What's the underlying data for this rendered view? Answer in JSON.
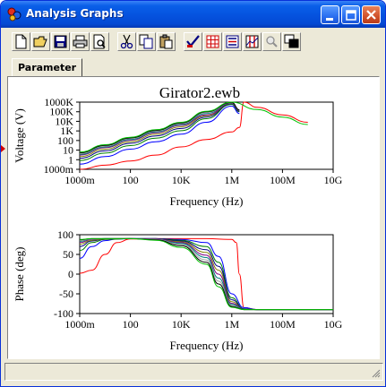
{
  "window": {
    "title": "Analysis Graphs"
  },
  "titlebar_buttons": [
    {
      "name": "minimize-button",
      "icon": "minimize-icon"
    },
    {
      "name": "maximize-button",
      "icon": "maximize-icon"
    },
    {
      "name": "close-button",
      "icon": "close-icon"
    }
  ],
  "toolbar": {
    "tools": [
      {
        "name": "new-button",
        "icon": "new-document-icon"
      },
      {
        "name": "open-button",
        "icon": "open-folder-icon"
      },
      {
        "name": "save-button",
        "icon": "save-disk-icon"
      },
      {
        "name": "print-button",
        "icon": "printer-icon"
      },
      {
        "name": "print-preview-button",
        "icon": "print-preview-icon"
      },
      {
        "name": "cut-button",
        "icon": "scissors-icon"
      },
      {
        "name": "copy-button",
        "icon": "copy-icon"
      },
      {
        "name": "paste-button",
        "icon": "paste-icon"
      },
      {
        "name": "properties-button",
        "icon": "properties-icon"
      },
      {
        "name": "toggle-grid-button",
        "icon": "grid-icon"
      },
      {
        "name": "toggle-legend-button",
        "icon": "legend-icon"
      },
      {
        "name": "toggle-cursors-button",
        "icon": "cursors-icon"
      },
      {
        "name": "zoom-button",
        "icon": "zoom-icon"
      },
      {
        "name": "restore-graph-button",
        "icon": "restore-icon"
      }
    ]
  },
  "tabs": [
    {
      "label": "Parameter",
      "active": true
    }
  ],
  "colors": {
    "title_bar": "#0554e0",
    "series": [
      "#ff0000",
      "#0000ff",
      "#008000",
      "#000080",
      "#808000",
      "#800080",
      "#008080",
      "#a0a0a0",
      "#000000",
      "#00c000"
    ]
  },
  "graph_title": "Girator2.ewb",
  "chart_data": [
    {
      "type": "line",
      "title": "Girator2.ewb",
      "xlabel": "Frequency (Hz)",
      "ylabel": "Voltage (V)",
      "x_scale": "log",
      "y_scale": "log",
      "xlim": [
        1,
        10000000000
      ],
      "ylim": [
        0.001,
        1000000
      ],
      "x_ticks": [
        "1000m",
        "100",
        "10K",
        "1M",
        "100M",
        "10G"
      ],
      "y_ticks": [
        "1000K",
        "100K",
        "10K",
        "1K",
        "100",
        "10",
        "1",
        "1000m"
      ],
      "grid": false,
      "series": [
        {
          "color": "#ff0000",
          "x": [
            1,
            10,
            100,
            1000,
            10000,
            100000,
            1000000,
            2000000,
            3000000,
            10000000,
            100000000,
            1000000000
          ],
          "y": [
            0.001,
            0.0036,
            0.013,
            0.08,
            1,
            10,
            100,
            400,
            1000000,
            200000,
            20000,
            2000
          ]
        },
        {
          "color": "#0000ff",
          "x": [
            1,
            10,
            100,
            1000,
            10000,
            100000,
            1000000,
            2000000
          ],
          "y": [
            0.005,
            0.05,
            0.5,
            5,
            50,
            2000,
            300000,
            30000
          ]
        },
        {
          "color": "#008000",
          "x": [
            1,
            10,
            100,
            1000,
            10000,
            100000,
            1000000,
            2000000
          ],
          "y": [
            0.015,
            0.15,
            1.5,
            15,
            150,
            6000,
            500000,
            50000
          ]
        },
        {
          "color": "#000080",
          "x": [
            1,
            10,
            100,
            1000,
            10000,
            100000,
            1000000,
            2000000
          ],
          "y": [
            0.03,
            0.3,
            3,
            30,
            300,
            10000,
            600000,
            60000
          ]
        },
        {
          "color": "#808000",
          "x": [
            1,
            10,
            100,
            1000,
            10000,
            100000,
            1000000,
            2000000
          ],
          "y": [
            0.05,
            0.5,
            5,
            50,
            500,
            15000,
            700000,
            70000
          ]
        },
        {
          "color": "#800080",
          "x": [
            1,
            10,
            100,
            1000,
            10000,
            100000,
            1000000,
            2000000
          ],
          "y": [
            0.08,
            0.8,
            8,
            80,
            800,
            20000,
            750000,
            75000
          ]
        },
        {
          "color": "#008080",
          "x": [
            1,
            10,
            100,
            1000,
            10000,
            100000,
            1000000,
            2000000
          ],
          "y": [
            0.1,
            1,
            10,
            100,
            1000,
            30000,
            800000,
            80000
          ]
        },
        {
          "color": "#a0a0a0",
          "x": [
            1,
            10,
            100,
            1000,
            10000,
            100000,
            1000000,
            2000000
          ],
          "y": [
            0.13,
            1.3,
            13,
            130,
            1300,
            40000,
            850000,
            85000
          ]
        },
        {
          "color": "#000000",
          "x": [
            1,
            10,
            100,
            1000,
            10000,
            100000,
            1000000,
            2000000
          ],
          "y": [
            0.16,
            1.6,
            16,
            160,
            1600,
            50000,
            900000,
            90000
          ]
        },
        {
          "color": "#00c000",
          "x": [
            1,
            10,
            100,
            1000,
            10000,
            100000,
            1000000,
            10000000,
            100000000,
            1000000000
          ],
          "y": [
            0.2,
            2,
            20,
            200,
            2000,
            60000,
            1000000,
            100000,
            10000,
            1000
          ]
        }
      ]
    },
    {
      "type": "line",
      "xlabel": "Frequency (Hz)",
      "ylabel": "Phase (deg)",
      "x_scale": "log",
      "xlim": [
        1,
        10000000000
      ],
      "ylim": [
        -100,
        100
      ],
      "x_ticks": [
        "1000m",
        "100",
        "10K",
        "1M",
        "100M",
        "10G"
      ],
      "y_ticks": [
        "100",
        "50",
        "0",
        "-50",
        "-100"
      ],
      "grid": false,
      "series": [
        {
          "color": "#ff0000",
          "x": [
            1,
            3,
            10,
            30,
            100,
            1000,
            10000,
            100000,
            1000000,
            1500000,
            2000000,
            3000000,
            10000000,
            10000000000
          ],
          "y": [
            2,
            10,
            50,
            80,
            89,
            90,
            90,
            90,
            88,
            80,
            0,
            -85,
            -90,
            -90
          ]
        },
        {
          "color": "#0000ff",
          "x": [
            1,
            3,
            10,
            30,
            100,
            1000,
            10000,
            100000,
            300000,
            1000000,
            3000000,
            10000000,
            10000000000
          ],
          "y": [
            40,
            70,
            85,
            89,
            90,
            90,
            88,
            80,
            45,
            -50,
            -85,
            -90,
            -90
          ]
        },
        {
          "color": "#008000",
          "x": [
            1,
            3,
            10,
            100,
            1000,
            10000,
            100000,
            300000,
            1000000,
            3000000,
            10000000,
            10000000000
          ],
          "y": [
            60,
            80,
            88,
            90,
            90,
            86,
            70,
            30,
            -60,
            -88,
            -90,
            -90
          ]
        },
        {
          "color": "#000080",
          "x": [
            1,
            3,
            10,
            100,
            1000,
            10000,
            100000,
            300000,
            1000000,
            3000000,
            10000000,
            10000000000
          ],
          "y": [
            70,
            84,
            89,
            90,
            90,
            84,
            62,
            20,
            -65,
            -88,
            -90,
            -90
          ]
        },
        {
          "color": "#808000",
          "x": [
            1,
            3,
            10,
            100,
            1000,
            10000,
            100000,
            300000,
            1000000,
            3000000,
            10000000,
            10000000000
          ],
          "y": [
            76,
            86,
            89,
            90,
            89,
            82,
            55,
            10,
            -70,
            -89,
            -90,
            -90
          ]
        },
        {
          "color": "#800080",
          "x": [
            1,
            3,
            10,
            100,
            1000,
            10000,
            100000,
            300000,
            1000000,
            3000000,
            10000000,
            10000000000
          ],
          "y": [
            80,
            88,
            90,
            90,
            89,
            80,
            48,
            0,
            -74,
            -89,
            -90,
            -90
          ]
        },
        {
          "color": "#008080",
          "x": [
            1,
            3,
            10,
            100,
            1000,
            10000,
            100000,
            300000,
            1000000,
            3000000,
            10000000,
            10000000000
          ],
          "y": [
            83,
            89,
            90,
            90,
            88,
            78,
            42,
            -10,
            -77,
            -89,
            -90,
            -90
          ]
        },
        {
          "color": "#a0a0a0",
          "x": [
            1,
            3,
            10,
            100,
            1000,
            10000,
            100000,
            300000,
            1000000,
            3000000,
            10000000,
            10000000000
          ],
          "y": [
            85,
            89,
            90,
            90,
            88,
            75,
            36,
            -18,
            -80,
            -90,
            -90,
            -90
          ]
        },
        {
          "color": "#000000",
          "x": [
            1,
            3,
            10,
            100,
            1000,
            10000,
            100000,
            300000,
            1000000,
            3000000,
            10000000,
            10000000000
          ],
          "y": [
            87,
            90,
            90,
            90,
            87,
            72,
            30,
            -25,
            -82,
            -90,
            -90,
            -90
          ]
        },
        {
          "color": "#00c000",
          "x": [
            1,
            3,
            10,
            100,
            1000,
            10000,
            100000,
            300000,
            1000000,
            3000000,
            10000000,
            10000000000
          ],
          "y": [
            88,
            90,
            90,
            90,
            86,
            68,
            25,
            -32,
            -84,
            -90,
            -90,
            -90
          ]
        }
      ]
    }
  ]
}
